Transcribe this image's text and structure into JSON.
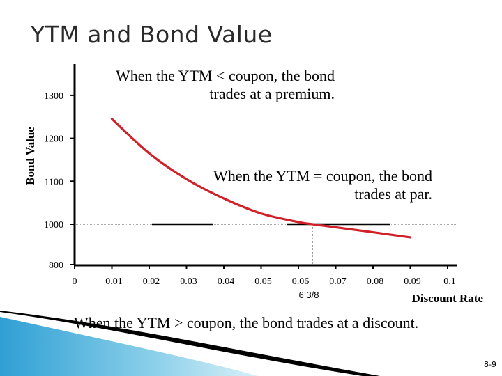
{
  "slide": {
    "title": "YTM and Bond Value",
    "number": "8-9"
  },
  "annotations": {
    "premium": "When the YTM < coupon, the bond trades at a premium.",
    "par": "When the YTM = coupon, the bond trades at par.",
    "discount": "When the YTM > coupon, the bond trades at a discount.",
    "coupon_marker": "6 3/8"
  },
  "colors": {
    "curve": "#d0202a",
    "axis": "#000000",
    "text": "#000000",
    "reference_line": "#555555"
  },
  "chart_data": {
    "type": "line",
    "title": "",
    "xlabel": "Discount Rate",
    "ylabel": "Bond Value",
    "x_ticks": [
      "0",
      "0.01",
      "0.02",
      "0.03",
      "0.04",
      "0.05",
      "0.06",
      "0.07",
      "0.08",
      "0.09",
      "0.1"
    ],
    "y_ticks": [
      "800",
      "1000",
      "1100",
      "1200",
      "1300"
    ],
    "series": [
      {
        "x": [
          0.01,
          0.02,
          0.03,
          0.04,
          0.05,
          0.06,
          0.0638,
          0.07,
          0.08,
          0.09
        ],
        "values": [
          1245,
          1165,
          1105,
          1060,
          1025,
          1005,
          1000,
          985,
          960,
          935
        ]
      }
    ],
    "par_value": 1000,
    "coupon_rate": 0.06375,
    "grid": false
  }
}
